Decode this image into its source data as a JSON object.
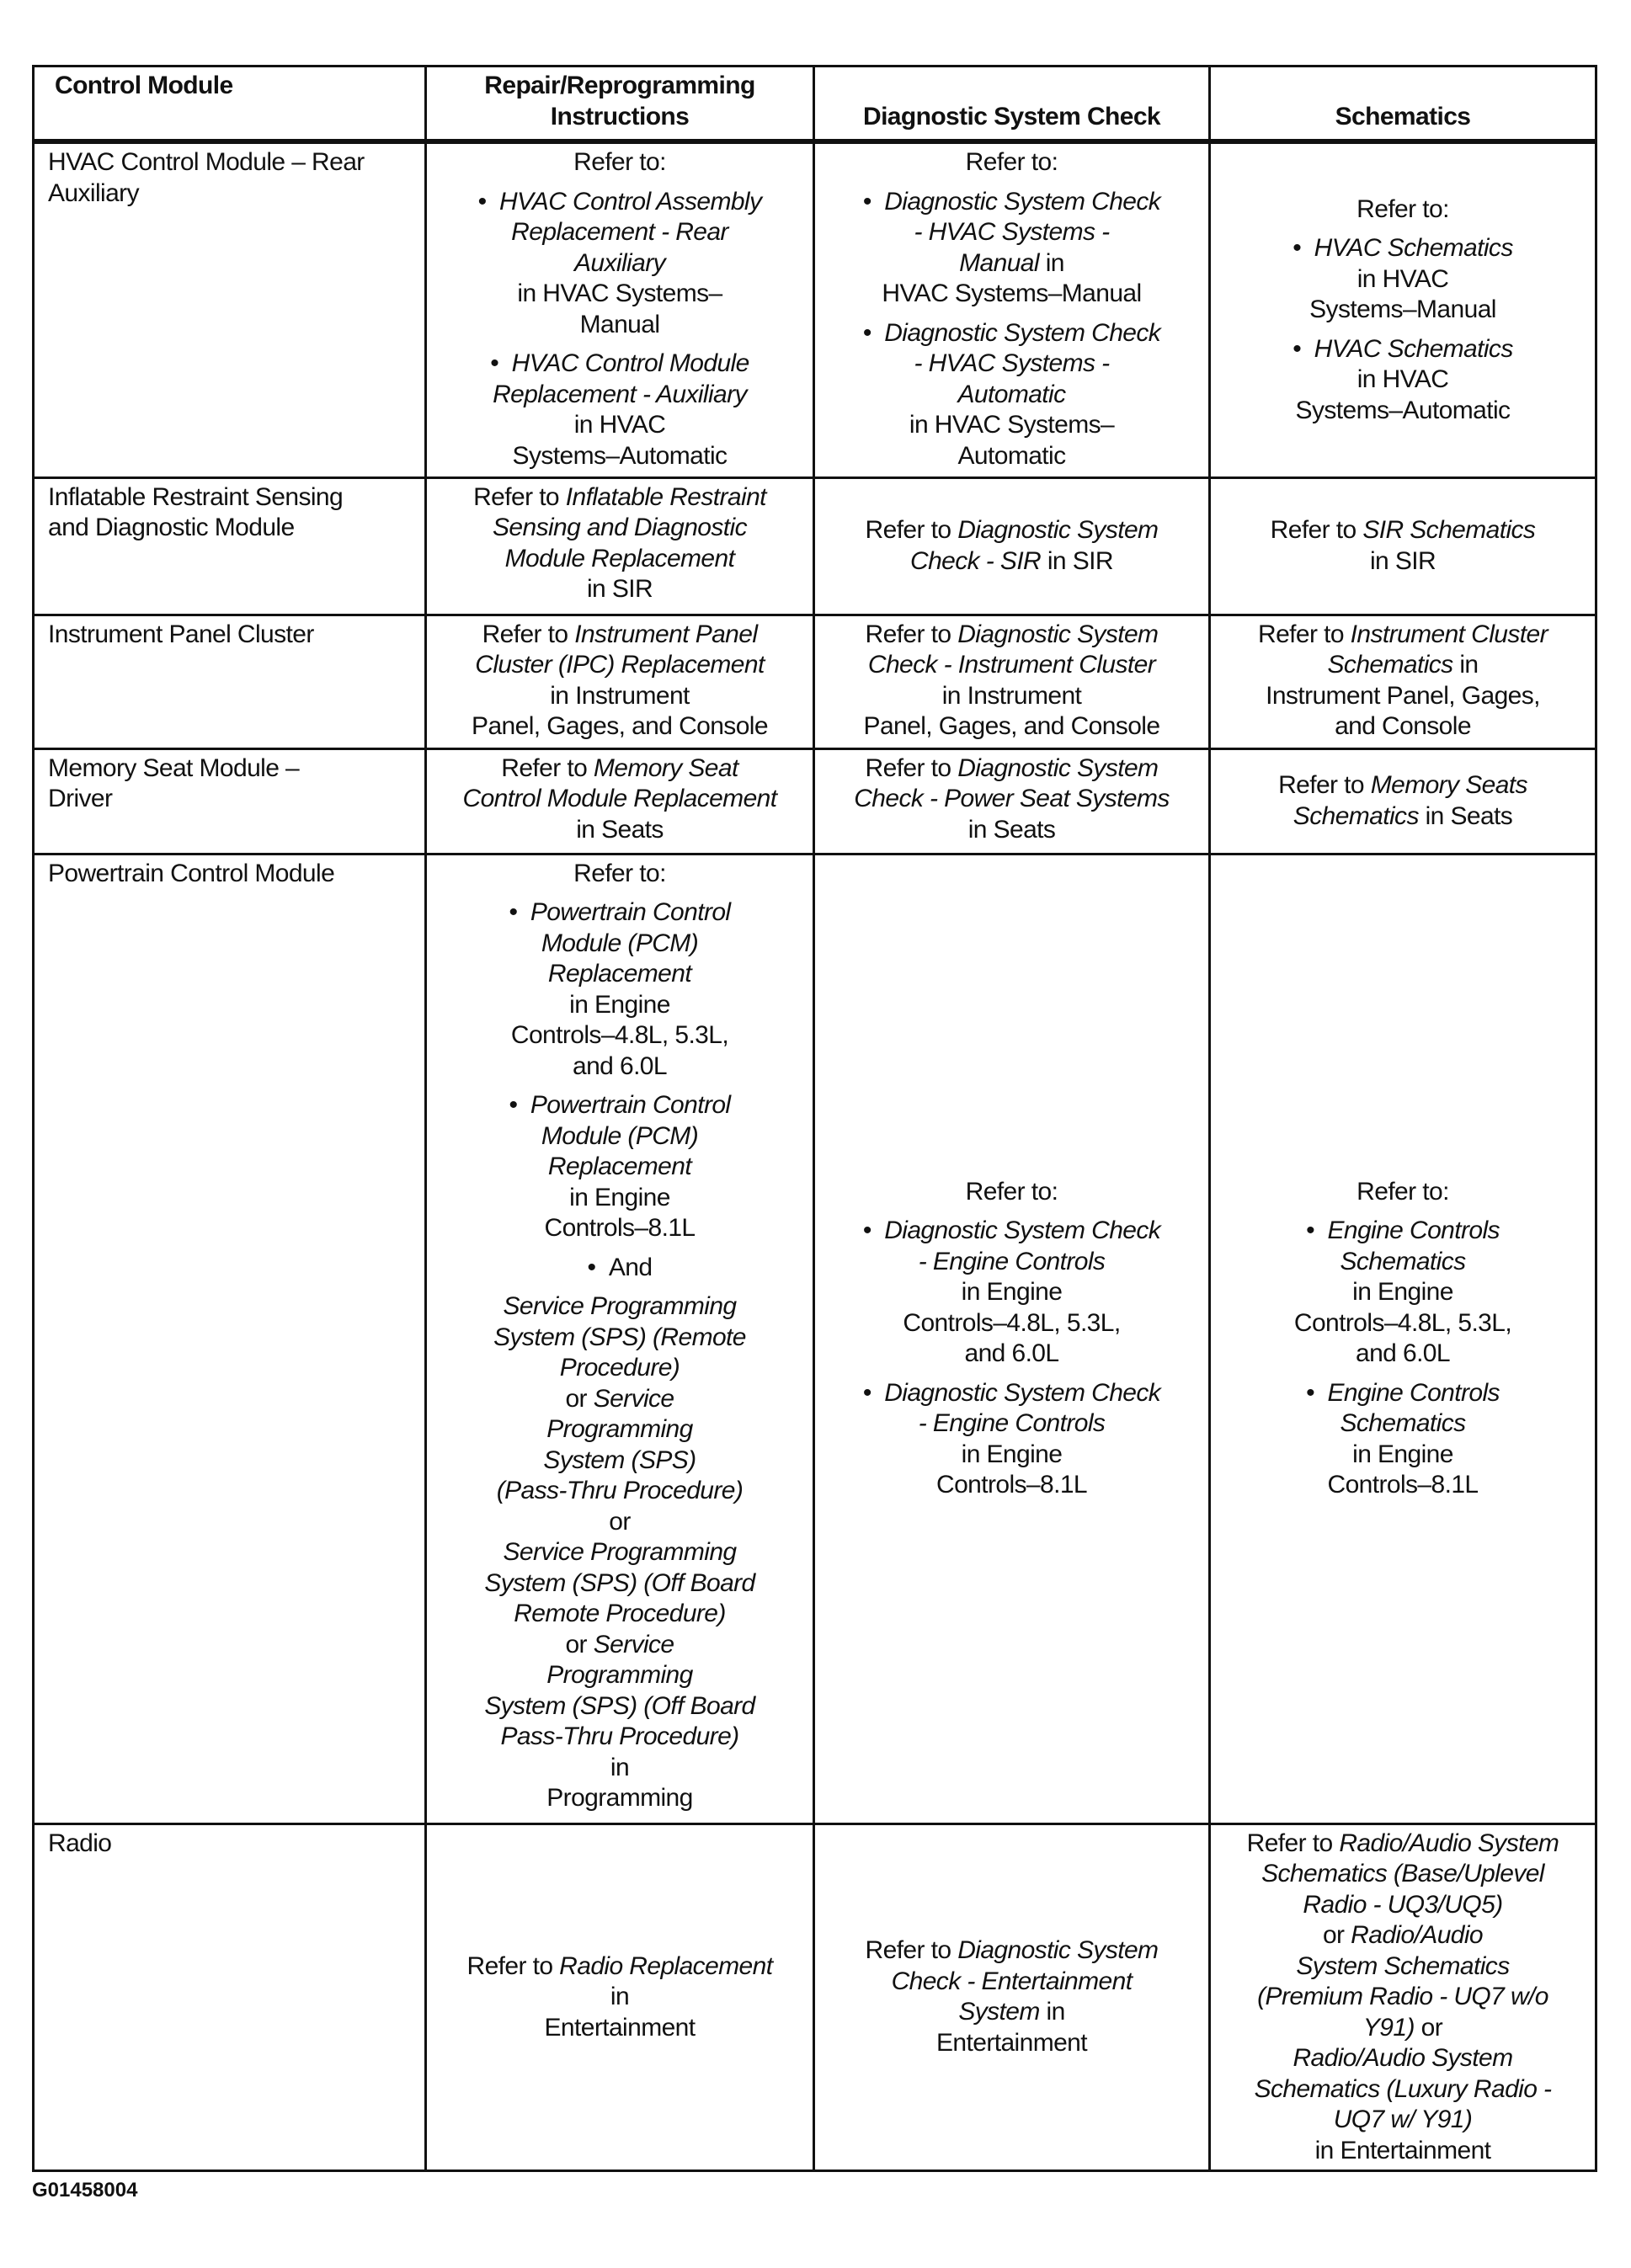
{
  "headers": [
    "Control Module",
    "Repair/Reprogramming Instructions",
    "Diagnostic System Check",
    "Schematics"
  ],
  "rows": [
    {
      "height": "",
      "cells": [
        {
          "valign": "top",
          "blocks": [
            {
              "lines": [
                [
                  "HVAC Control Module – Rear"
                ],
                [
                  "Auxiliary"
                ]
              ]
            }
          ]
        },
        {
          "valign": "top",
          "blocks": [
            {
              "lines": [
                [
                  "Refer to:"
                ]
              ]
            },
            {
              "bullet": true,
              "lines": [
                [
                  {
                    "i": "HVAC Control Assembly"
                  }
                ],
                [
                  {
                    "i": "Replacement - Rear"
                  }
                ],
                [
                  {
                    "i": "Auxiliary"
                  }
                ],
                [
                  "in HVAC Systems–"
                ],
                [
                  "Manual"
                ]
              ]
            },
            {
              "bullet": true,
              "lines": [
                [
                  {
                    "i": "HVAC Control Module"
                  }
                ],
                [
                  {
                    "i": "Replacement - Auxiliary"
                  }
                ],
                [
                  "in HVAC"
                ],
                [
                  "Systems–Automatic"
                ]
              ]
            }
          ]
        },
        {
          "valign": "top",
          "blocks": [
            {
              "lines": [
                [
                  "Refer to:"
                ]
              ]
            },
            {
              "bullet": true,
              "lines": [
                [
                  {
                    "i": "Diagnostic System Check"
                  }
                ],
                [
                  {
                    "i": "- HVAC Systems -"
                  }
                ],
                [
                  {
                    "i": "Manual"
                  },
                  " in"
                ],
                [
                  "HVAC Systems–Manual"
                ]
              ]
            },
            {
              "bullet": true,
              "lines": [
                [
                  {
                    "i": "Diagnostic System Check"
                  }
                ],
                [
                  {
                    "i": "- HVAC Systems -"
                  }
                ],
                [
                  {
                    "i": "Automatic"
                  }
                ],
                [
                  "in HVAC Systems–"
                ],
                [
                  "Automatic"
                ]
              ]
            }
          ]
        },
        {
          "valign": "middle",
          "blocks": [
            {
              "lines": [
                [
                  "Refer to:"
                ]
              ]
            },
            {
              "bullet": true,
              "lines": [
                [
                  {
                    "i": "HVAC Schematics"
                  }
                ],
                [
                  "in HVAC"
                ],
                [
                  "Systems–Manual"
                ]
              ]
            },
            {
              "bullet": true,
              "lines": [
                [
                  {
                    "i": "HVAC Schematics"
                  }
                ],
                [
                  "in HVAC"
                ],
                [
                  "Systems–Automatic"
                ]
              ]
            }
          ]
        }
      ]
    },
    {
      "cells": [
        {
          "valign": "top",
          "blocks": [
            {
              "lines": [
                [
                  "Inflatable Restraint Sensing"
                ],
                [
                  "and Diagnostic Module"
                ]
              ]
            }
          ]
        },
        {
          "valign": "top",
          "blocks": [
            {
              "lines": [
                [
                  "Refer to ",
                  {
                    "i": "Inflatable Restraint"
                  }
                ],
                [
                  {
                    "i": "Sensing and Diagnostic"
                  }
                ],
                [
                  {
                    "i": "Module Replacement"
                  }
                ],
                [
                  "in SIR"
                ]
              ]
            }
          ]
        },
        {
          "valign": "middle",
          "blocks": [
            {
              "lines": [
                [
                  "Refer to ",
                  {
                    "i": "Diagnostic System"
                  }
                ],
                [
                  {
                    "i": "Check - SIR"
                  },
                  " in SIR"
                ]
              ]
            }
          ]
        },
        {
          "valign": "middle",
          "blocks": [
            {
              "lines": [
                [
                  "Refer to ",
                  {
                    "i": "SIR Schematics"
                  }
                ],
                [
                  "in SIR"
                ]
              ]
            }
          ]
        }
      ]
    },
    {
      "cells": [
        {
          "valign": "top",
          "blocks": [
            {
              "lines": [
                [
                  "Instrument Panel Cluster"
                ]
              ]
            }
          ]
        },
        {
          "valign": "top",
          "blocks": [
            {
              "lines": [
                [
                  "Refer to ",
                  {
                    "i": "Instrument Panel"
                  }
                ],
                [
                  {
                    "i": "Cluster (IPC) Replacement"
                  }
                ],
                [
                  "in Instrument"
                ],
                [
                  "Panel, Gages, and Console"
                ]
              ]
            }
          ]
        },
        {
          "valign": "top",
          "blocks": [
            {
              "lines": [
                [
                  "Refer to ",
                  {
                    "i": "Diagnostic System"
                  }
                ],
                [
                  {
                    "i": "Check - Instrument Cluster"
                  }
                ],
                [
                  "in Instrument"
                ],
                [
                  "Panel, Gages, and Console"
                ]
              ]
            }
          ]
        },
        {
          "valign": "top",
          "blocks": [
            {
              "lines": [
                [
                  "Refer to ",
                  {
                    "i": "Instrument Cluster"
                  }
                ],
                [
                  {
                    "i": "Schematics"
                  },
                  " in"
                ],
                [
                  "Instrument Panel, Gages,"
                ],
                [
                  "and Console"
                ]
              ]
            }
          ]
        }
      ]
    },
    {
      "cells": [
        {
          "valign": "top",
          "blocks": [
            {
              "lines": [
                [
                  "Memory Seat Module –"
                ],
                [
                  "Driver"
                ]
              ]
            }
          ]
        },
        {
          "valign": "top",
          "blocks": [
            {
              "lines": [
                [
                  "Refer to ",
                  {
                    "i": "Memory Seat"
                  }
                ],
                [
                  {
                    "i": "Control Module Replacement"
                  }
                ],
                [
                  "in Seats"
                ]
              ]
            }
          ]
        },
        {
          "valign": "top",
          "blocks": [
            {
              "lines": [
                [
                  "Refer to ",
                  {
                    "i": "Diagnostic System"
                  }
                ],
                [
                  {
                    "i": "Check - Power Seat Systems"
                  }
                ],
                [
                  "in Seats"
                ]
              ]
            }
          ]
        },
        {
          "valign": "middle",
          "blocks": [
            {
              "lines": [
                [
                  "Refer to ",
                  {
                    "i": "Memory Seats"
                  }
                ],
                [
                  {
                    "i": "Schematics"
                  },
                  " in Seats"
                ]
              ]
            }
          ]
        }
      ]
    },
    {
      "cells": [
        {
          "valign": "top",
          "blocks": [
            {
              "lines": [
                [
                  "Powertrain Control Module"
                ]
              ]
            }
          ]
        },
        {
          "valign": "top",
          "blocks": [
            {
              "lines": [
                [
                  "Refer to:"
                ]
              ]
            },
            {
              "bullet": true,
              "lines": [
                [
                  {
                    "i": "Powertrain Control"
                  }
                ],
                [
                  {
                    "i": "Module (PCM)"
                  }
                ],
                [
                  {
                    "i": "Replacement"
                  }
                ],
                [
                  "in Engine"
                ],
                [
                  "Controls–4.8L, 5.3L,"
                ],
                [
                  "and 6.0L"
                ]
              ]
            },
            {
              "bullet": true,
              "lines": [
                [
                  {
                    "i": "Powertrain Control"
                  }
                ],
                [
                  {
                    "i": "Module (PCM)"
                  }
                ],
                [
                  {
                    "i": "Replacement"
                  }
                ],
                [
                  "in Engine"
                ],
                [
                  "Controls–8.1L"
                ]
              ]
            },
            {
              "bullet": true,
              "lines": [
                [
                  "And"
                ]
              ]
            },
            {
              "lines": [
                [
                  {
                    "i": "Service Programming"
                  }
                ],
                [
                  {
                    "i": "System (SPS) (Remote"
                  }
                ],
                [
                  {
                    "i": "Procedure)"
                  }
                ],
                [
                  "or ",
                  {
                    "i": "Service"
                  }
                ],
                [
                  {
                    "i": "Programming"
                  }
                ],
                [
                  {
                    "i": "System (SPS)"
                  }
                ],
                [
                  {
                    "i": "(Pass-Thru Procedure)"
                  }
                ],
                [
                  "or"
                ],
                [
                  {
                    "i": "Service Programming"
                  }
                ],
                [
                  {
                    "i": "System (SPS) (Off Board"
                  }
                ],
                [
                  {
                    "i": "Remote Procedure)"
                  }
                ],
                [
                  "or ",
                  {
                    "i": "Service"
                  }
                ],
                [
                  {
                    "i": "Programming"
                  }
                ],
                [
                  {
                    "i": "System (SPS) (Off Board"
                  }
                ],
                [
                  {
                    "i": "Pass-Thru Procedure)"
                  }
                ],
                [
                  "in"
                ],
                [
                  "Programming"
                ]
              ]
            }
          ]
        },
        {
          "valign": "middle",
          "blocks": [
            {
              "lines": [
                [
                  "Refer to:"
                ]
              ]
            },
            {
              "bullet": true,
              "lines": [
                [
                  {
                    "i": "Diagnostic System Check"
                  }
                ],
                [
                  {
                    "i": "- Engine Controls"
                  }
                ],
                [
                  "in Engine"
                ],
                [
                  "Controls–4.8L, 5.3L,"
                ],
                [
                  "and 6.0L"
                ]
              ]
            },
            {
              "bullet": true,
              "lines": [
                [
                  {
                    "i": "Diagnostic System Check"
                  }
                ],
                [
                  {
                    "i": "- Engine Controls"
                  }
                ],
                [
                  "in Engine"
                ],
                [
                  "Controls–8.1L"
                ]
              ]
            }
          ]
        },
        {
          "valign": "middle",
          "blocks": [
            {
              "lines": [
                [
                  "Refer to:"
                ]
              ]
            },
            {
              "bullet": true,
              "lines": [
                [
                  {
                    "i": "Engine Controls"
                  }
                ],
                [
                  {
                    "i": "Schematics"
                  }
                ],
                [
                  "in Engine"
                ],
                [
                  "Controls–4.8L, 5.3L,"
                ],
                [
                  "and 6.0L"
                ]
              ]
            },
            {
              "bullet": true,
              "lines": [
                [
                  {
                    "i": "Engine Controls"
                  }
                ],
                [
                  {
                    "i": "Schematics"
                  }
                ],
                [
                  "in Engine"
                ],
                [
                  "Controls–8.1L"
                ]
              ]
            }
          ]
        }
      ]
    },
    {
      "cells": [
        {
          "valign": "top",
          "blocks": [
            {
              "lines": [
                [
                  "Radio"
                ]
              ]
            }
          ]
        },
        {
          "valign": "middle",
          "blocks": [
            {
              "lines": [
                [
                  "Refer to ",
                  {
                    "i": "Radio Replacement"
                  }
                ],
                [
                  "in"
                ],
                [
                  "Entertainment"
                ]
              ]
            }
          ]
        },
        {
          "valign": "middle",
          "blocks": [
            {
              "lines": [
                [
                  "Refer to ",
                  {
                    "i": "Diagnostic System"
                  }
                ],
                [
                  {
                    "i": "Check - Entertainment"
                  }
                ],
                [
                  {
                    "i": "System"
                  },
                  " in"
                ],
                [
                  "Entertainment"
                ]
              ]
            }
          ]
        },
        {
          "valign": "middle",
          "blocks": [
            {
              "lines": [
                [
                  "Refer to ",
                  {
                    "i": "Radio/Audio System"
                  }
                ],
                [
                  {
                    "i": "Schematics (Base/Uplevel"
                  }
                ],
                [
                  {
                    "i": "Radio - UQ3/UQ5)"
                  }
                ],
                [
                  "or ",
                  {
                    "i": "Radio/Audio"
                  }
                ],
                [
                  {
                    "i": "System Schematics"
                  }
                ],
                [
                  {
                    "i": "(Premium Radio - UQ7 w/o"
                  }
                ],
                [
                  {
                    "i": "Y91)"
                  },
                  " or"
                ],
                [
                  {
                    "i": "Radio/Audio System"
                  }
                ],
                [
                  {
                    "i": "Schematics (Luxury Radio -"
                  }
                ],
                [
                  {
                    "i": "UQ7 w/ Y91)"
                  }
                ],
                [
                  "in Entertainment"
                ]
              ]
            }
          ]
        }
      ]
    }
  ],
  "footer": "G01458004"
}
